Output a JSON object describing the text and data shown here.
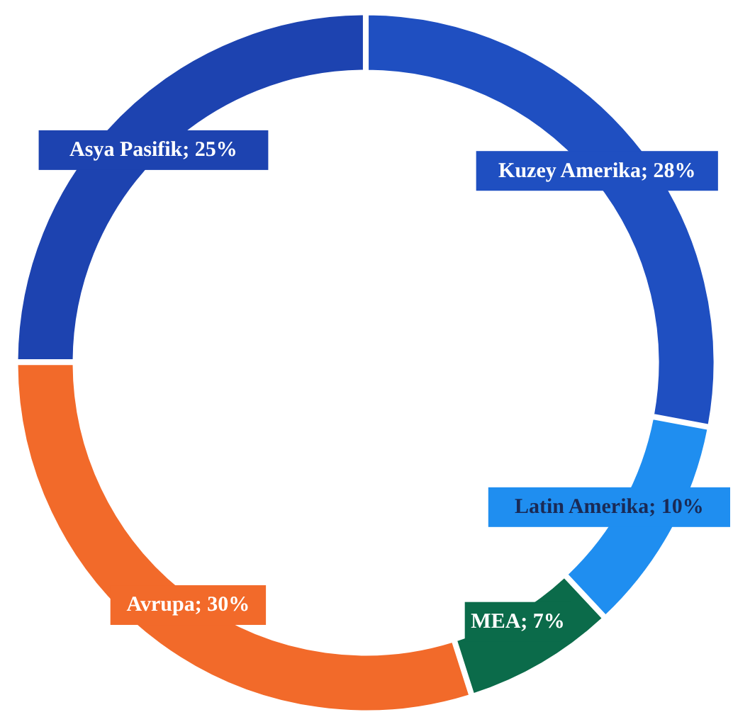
{
  "chart_data": {
    "type": "donut",
    "categories": [
      "Kuzey Amerika",
      "Latin Amerika",
      "MEA",
      "Avrupa",
      "Asya Pasifik"
    ],
    "values": [
      28,
      10,
      7,
      30,
      25
    ],
    "value_labels": [
      "28%",
      "10%",
      "7%",
      "30%",
      "25%"
    ],
    "colors": [
      "#1f4fc1",
      "#1f8ef0",
      "#0b6b4a",
      "#f26a2a",
      "#1d43b0"
    ]
  }
}
